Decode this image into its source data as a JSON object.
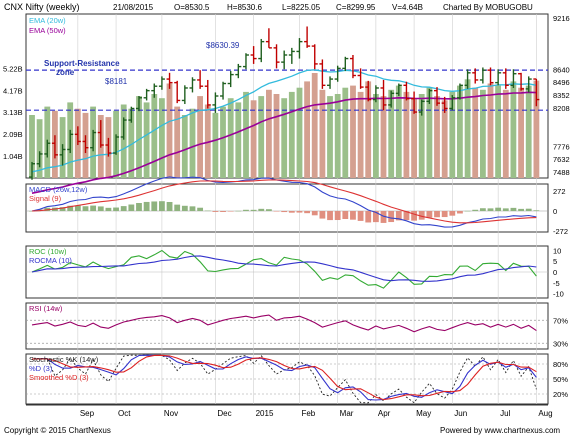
{
  "header": {
    "symbol": "CNX Nifty (weekly)",
    "date": "21/08/2015",
    "open": "O=8530.5",
    "high": "H=8530.6",
    "low": "L=8225.05",
    "close": "C=8299.95",
    "volume": "V=4.64B",
    "charted_by": "Charted By MOBUGOBU"
  },
  "footer": {
    "copyright": "Copyright © 2015 ChartNexus",
    "powered": "Powered by www.chartnexus.com"
  },
  "colors": {
    "up": "#1f5f1f",
    "down": "#c00000",
    "ema20": "#33bbdd",
    "ema50": "#990099",
    "vol_up": "#9bbf8a",
    "vol_down": "#d4a090",
    "macd": "#3344cc",
    "signal": "#dd3333",
    "roc": "#33aa33",
    "rocma": "#3333cc",
    "rsi": "#990066",
    "stoch_k": "#222222",
    "stoch_pd": "#3333cc",
    "stoch_sd": "#dd2222",
    "sr_line": "#3333cc",
    "panel_border": "#333333"
  },
  "chart_data": [
    {
      "type": "candlestick",
      "panel": "price",
      "legend": [
        "EMA (20w)",
        "EMA (50w)"
      ],
      "annotations": [
        {
          "text": "Support-Resistance",
          "line2": "zone"
        },
        {
          "text": "$8630.39",
          "value": 8630.39
        },
        {
          "text": "$8181",
          "value": 8181
        }
      ],
      "y_ticks": [
        9216,
        8640,
        8496,
        8352,
        8208,
        7776,
        7632,
        7488
      ],
      "volume_ticks": [
        "5.22B",
        "4.17B",
        "3.13B",
        "2.09B",
        "1.04B"
      ],
      "x_ticks": [
        "Sep",
        "Oct",
        "Nov",
        "Dec",
        "2015",
        "Feb",
        "Mar",
        "Apr",
        "May",
        "Jun",
        "Jul",
        "Aug"
      ],
      "x_tick_index": [
        6,
        11,
        17,
        24,
        29,
        35,
        40,
        45,
        50,
        55,
        61,
        66
      ],
      "ohlc": [
        [
          7430,
          7600,
          7400,
          7580
        ],
        [
          7580,
          7720,
          7540,
          7690
        ],
        [
          7690,
          7850,
          7650,
          7810
        ],
        [
          7810,
          7900,
          7640,
          7680
        ],
        [
          7680,
          7800,
          7560,
          7740
        ],
        [
          7740,
          7960,
          7700,
          7910
        ],
        [
          7910,
          8000,
          7790,
          7830
        ],
        [
          7830,
          7900,
          7700,
          7760
        ],
        [
          7760,
          7960,
          7720,
          7930
        ],
        [
          7930,
          8070,
          7760,
          7790
        ],
        [
          7790,
          7870,
          7660,
          7700
        ],
        [
          7700,
          7910,
          7680,
          7880
        ],
        [
          7880,
          8100,
          7850,
          8070
        ],
        [
          8070,
          8220,
          8040,
          8200
        ],
        [
          8200,
          8340,
          8170,
          8320
        ],
        [
          8320,
          8420,
          8290,
          8400
        ],
        [
          8400,
          8480,
          8320,
          8450
        ],
        [
          8450,
          8560,
          8410,
          8530
        ],
        [
          8530,
          8600,
          8420,
          8490
        ],
        [
          8490,
          8510,
          8260,
          8290
        ],
        [
          8290,
          8460,
          8250,
          8430
        ],
        [
          8430,
          8550,
          8380,
          8520
        ],
        [
          8520,
          8630,
          8420,
          8450
        ],
        [
          8450,
          8520,
          8200,
          8240
        ],
        [
          8240,
          8380,
          8150,
          8340
        ],
        [
          8340,
          8500,
          8300,
          8480
        ],
        [
          8480,
          8620,
          8440,
          8580
        ],
        [
          8580,
          8700,
          8540,
          8670
        ],
        [
          8670,
          8820,
          8640,
          8800
        ],
        [
          8800,
          8900,
          8700,
          8760
        ],
        [
          8760,
          8980,
          8720,
          8950
        ],
        [
          8950,
          9100,
          8880,
          8880
        ],
        [
          8880,
          8920,
          8650,
          8720
        ],
        [
          8720,
          8850,
          8640,
          8800
        ],
        [
          8800,
          8880,
          8700,
          8840
        ],
        [
          8840,
          8990,
          8760,
          8950
        ],
        [
          8950,
          9120,
          8880,
          8900
        ],
        [
          8900,
          8920,
          8640,
          8700
        ],
        [
          8700,
          8750,
          8420,
          8460
        ],
        [
          8460,
          8560,
          8420,
          8530
        ],
        [
          8530,
          8680,
          8500,
          8650
        ],
        [
          8650,
          8780,
          8620,
          8760
        ],
        [
          8760,
          8800,
          8540,
          8570
        ],
        [
          8570,
          8650,
          8420,
          8440
        ],
        [
          8440,
          8510,
          8280,
          8300
        ],
        [
          8300,
          8460,
          8270,
          8430
        ],
        [
          8430,
          8520,
          8180,
          8240
        ],
        [
          8240,
          8400,
          8210,
          8370
        ],
        [
          8370,
          8480,
          8340,
          8460
        ],
        [
          8460,
          8500,
          8290,
          8310
        ],
        [
          8310,
          8390,
          8140,
          8160
        ],
        [
          8160,
          8300,
          8120,
          8280
        ],
        [
          8280,
          8420,
          8250,
          8400
        ],
        [
          8400,
          8440,
          8230,
          8260
        ],
        [
          8260,
          8330,
          8150,
          8200
        ],
        [
          8200,
          8350,
          8180,
          8320
        ],
        [
          8320,
          8480,
          8300,
          8460
        ],
        [
          8460,
          8640,
          8420,
          8600
        ],
        [
          8600,
          8650,
          8480,
          8520
        ],
        [
          8520,
          8660,
          8480,
          8630
        ],
        [
          8630,
          8660,
          8460,
          8490
        ],
        [
          8490,
          8640,
          8460,
          8600
        ],
        [
          8600,
          8650,
          8420,
          8460
        ],
        [
          8460,
          8640,
          8430,
          8590
        ],
        [
          8590,
          8600,
          8400,
          8420
        ],
        [
          8420,
          8560,
          8380,
          8530
        ],
        [
          8530.5,
          8530.6,
          8225.05,
          8299.95
        ]
      ],
      "volume": [
        3.0,
        2.8,
        3.4,
        3.2,
        2.9,
        3.6,
        3.3,
        3.1,
        3.4,
        3.0,
        2.9,
        3.2,
        3.5,
        3.3,
        3.9,
        3.6,
        4.0,
        3.8,
        4.5,
        3.4,
        3.0,
        3.3,
        3.9,
        3.5,
        3.1,
        3.4,
        3.8,
        3.6,
        4.1,
        3.7,
        3.9,
        4.2,
        4.0,
        3.8,
        4.1,
        4.3,
        4.6,
        5.0,
        4.2,
        3.9,
        4.0,
        4.3,
        4.4,
        4.1,
        4.6,
        4.0,
        3.9,
        4.2,
        4.4,
        4.1,
        3.8,
        4.0,
        4.3,
        3.9,
        3.7,
        4.1,
        4.4,
        4.7,
        4.3,
        4.2,
        4.5,
        4.4,
        4.2,
        4.6,
        4.3,
        4.4,
        4.64
      ]
    },
    {
      "type": "line",
      "panel": "macd",
      "legend": [
        "MACD (26w,12w)",
        "Signal (9)"
      ],
      "y_ticks": [
        272,
        0,
        -272
      ],
      "ylim": [
        -330,
        330
      ]
    },
    {
      "type": "line",
      "panel": "roc",
      "legend": [
        "ROC (10w)",
        "ROCMA (10)"
      ],
      "y_ticks": [
        10,
        5,
        0,
        -5,
        -10
      ],
      "ylim": [
        -12,
        12
      ]
    },
    {
      "type": "line",
      "panel": "rsi",
      "legend": [
        "RSI (14w)"
      ],
      "y_ticks": [
        "70%",
        "30%"
      ],
      "ylim": [
        20,
        100
      ],
      "values": [
        62,
        64,
        66,
        60,
        63,
        67,
        61,
        59,
        65,
        58,
        56,
        62,
        67,
        70,
        73,
        75,
        76,
        78,
        74,
        66,
        70,
        73,
        70,
        62,
        66,
        70,
        73,
        75,
        77,
        74,
        77,
        79,
        70,
        74,
        75,
        77,
        72,
        66,
        58,
        62,
        66,
        69,
        62,
        57,
        53,
        60,
        55,
        58,
        61,
        56,
        50,
        55,
        59,
        54,
        52,
        57,
        62,
        66,
        62,
        64,
        58,
        63,
        58,
        63,
        56,
        61,
        52
      ]
    },
    {
      "type": "line",
      "panel": "stochastic",
      "legend": [
        "Stochastic %K (14w)",
        "%D (3)",
        "Smoothed %D (3)"
      ],
      "y_ticks": [
        "80%",
        "50%",
        "20%"
      ],
      "ylim": [
        0,
        100
      ]
    }
  ]
}
